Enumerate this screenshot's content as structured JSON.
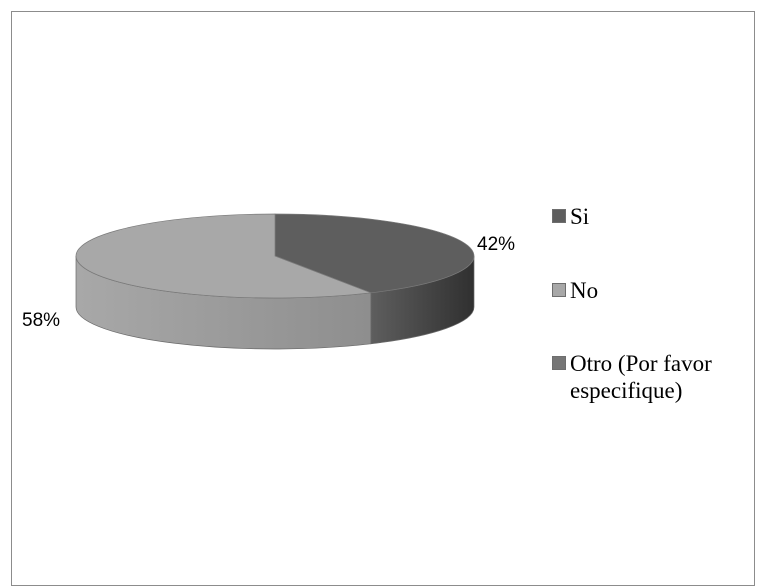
{
  "chart_data": {
    "type": "pie",
    "title": "",
    "slices": [
      {
        "label": "Si",
        "value": 42,
        "display": "42%",
        "color": "#5e5e5e",
        "side_color": "#303030"
      },
      {
        "label": "No",
        "value": 58,
        "display": "58%",
        "color": "#a8a8a8",
        "side_color": "#8e8e8e"
      },
      {
        "label": "Otro (Por favor especifique)",
        "value": 0,
        "display": "",
        "color": "#767676",
        "side_color": "#555555"
      }
    ],
    "legend": {
      "position": "right",
      "items": [
        {
          "label": "Si",
          "color": "#5e5e5e"
        },
        {
          "label": "No",
          "color": "#a8a8a8"
        },
        {
          "label": "Otro (Por favor\nespecifique)",
          "color": "#767676"
        }
      ]
    },
    "style": "3d"
  }
}
